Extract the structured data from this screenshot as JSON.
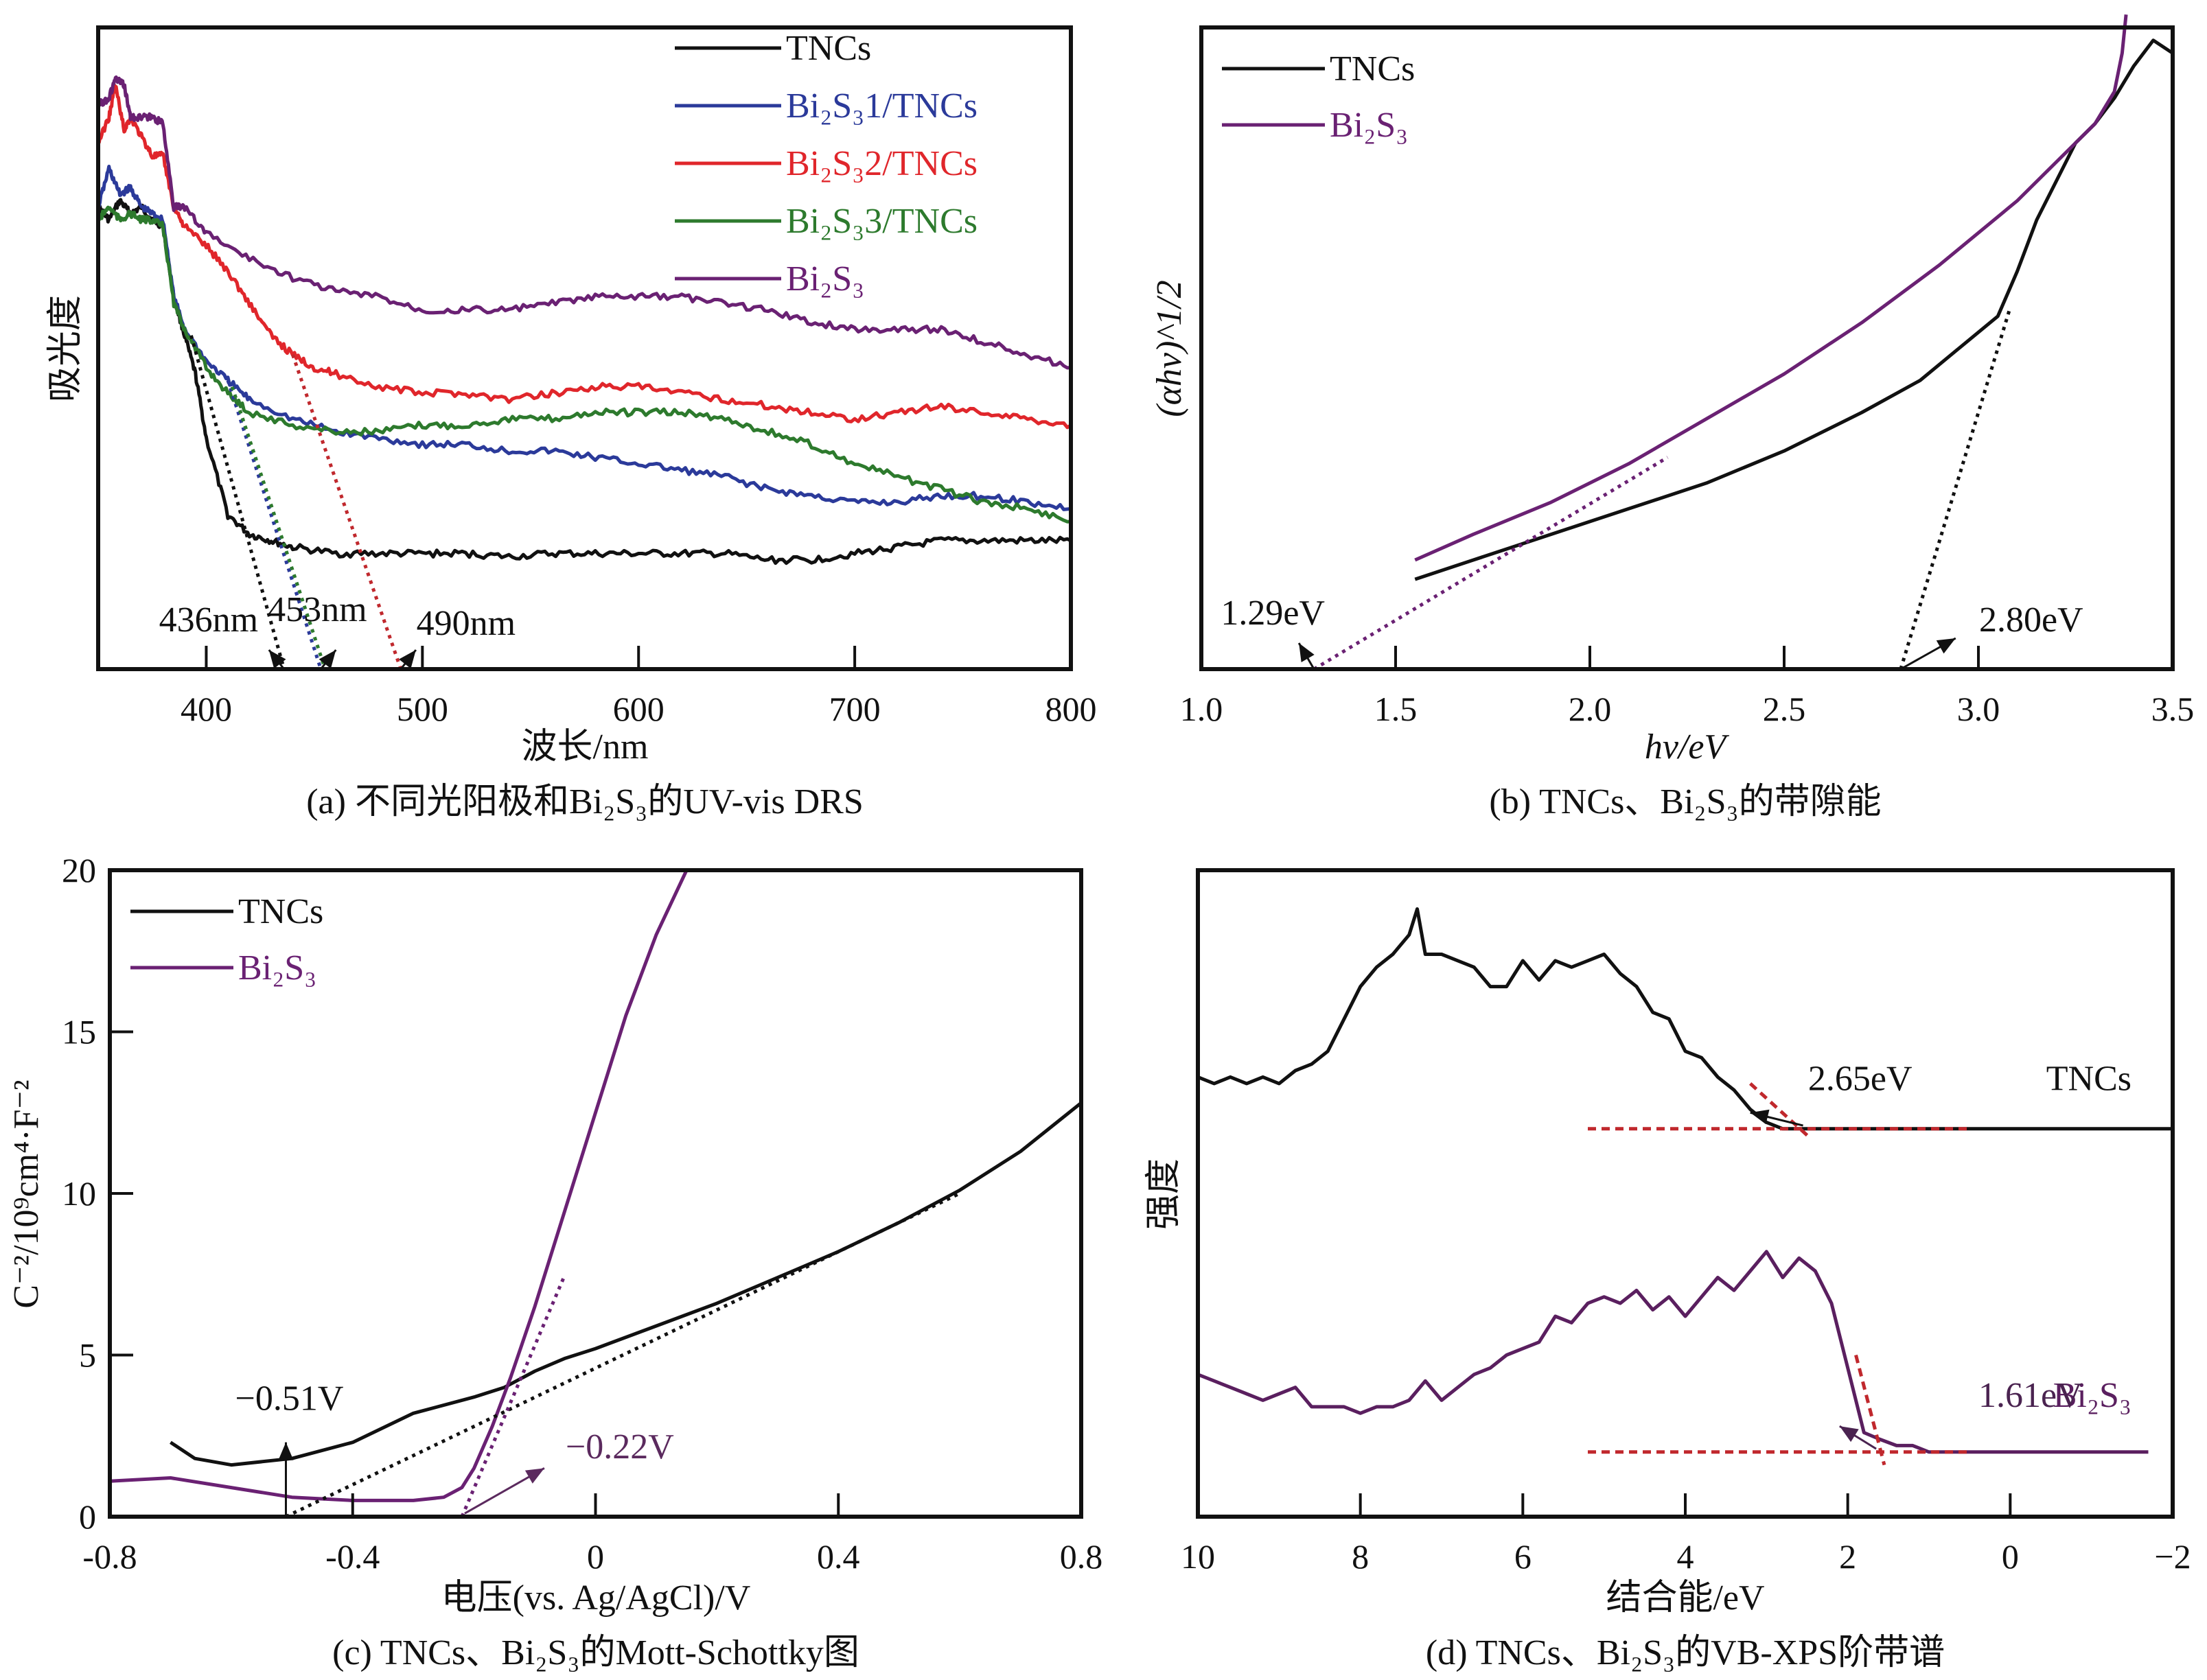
{
  "chart_data": [
    {
      "id": "a",
      "type": "line",
      "caption": "(a) 不同光阳极和Bi₂S₃的UV-vis DRS",
      "xlabel": "波长/nm",
      "ylabel": "吸光度",
      "xlim": [
        350,
        800
      ],
      "ylim": [
        0,
        1
      ],
      "xticks": [
        400,
        500,
        600,
        700,
        800
      ],
      "yticks": [],
      "grid": false,
      "legend_position": "top-right",
      "series": [
        {
          "name": "TNCs",
          "color": "#111111",
          "x": [
            350,
            355,
            360,
            365,
            370,
            375,
            380,
            385,
            390,
            395,
            400,
            410,
            420,
            430,
            440,
            460,
            480,
            500,
            520,
            540,
            560,
            580,
            600,
            620,
            640,
            660,
            680,
            700,
            720,
            740,
            760,
            780,
            800
          ],
          "y": [
            0.72,
            0.7,
            0.73,
            0.71,
            0.72,
            0.7,
            0.69,
            0.58,
            0.52,
            0.46,
            0.36,
            0.24,
            0.21,
            0.2,
            0.19,
            0.18,
            0.18,
            0.18,
            0.18,
            0.175,
            0.18,
            0.18,
            0.18,
            0.18,
            0.18,
            0.17,
            0.17,
            0.18,
            0.19,
            0.2,
            0.2,
            0.2,
            0.2
          ]
        },
        {
          "name": "Bi₂S₃1/TNCs",
          "color": "#2b3a9a",
          "x": [
            350,
            355,
            360,
            365,
            370,
            375,
            380,
            385,
            390,
            400,
            410,
            420,
            440,
            460,
            480,
            500,
            520,
            540,
            560,
            580,
            600,
            620,
            640,
            660,
            680,
            700,
            720,
            740,
            760,
            780,
            800
          ],
          "y": [
            0.72,
            0.78,
            0.74,
            0.75,
            0.72,
            0.71,
            0.7,
            0.58,
            0.53,
            0.48,
            0.45,
            0.42,
            0.39,
            0.37,
            0.36,
            0.35,
            0.35,
            0.34,
            0.34,
            0.33,
            0.32,
            0.31,
            0.3,
            0.28,
            0.27,
            0.26,
            0.26,
            0.27,
            0.27,
            0.26,
            0.25
          ]
        },
        {
          "name": "Bi₂S₃2/TNCs",
          "color": "#e0262b",
          "x": [
            350,
            355,
            358,
            362,
            365,
            370,
            375,
            380,
            385,
            390,
            400,
            410,
            420,
            430,
            440,
            450,
            460,
            480,
            500,
            520,
            540,
            560,
            580,
            600,
            620,
            640,
            660,
            680,
            700,
            720,
            740,
            760,
            780,
            800
          ],
          "y": [
            0.82,
            0.86,
            0.91,
            0.84,
            0.86,
            0.83,
            0.8,
            0.8,
            0.72,
            0.69,
            0.66,
            0.62,
            0.57,
            0.52,
            0.49,
            0.47,
            0.46,
            0.44,
            0.43,
            0.43,
            0.42,
            0.43,
            0.44,
            0.44,
            0.43,
            0.42,
            0.41,
            0.4,
            0.39,
            0.4,
            0.41,
            0.4,
            0.39,
            0.38
          ]
        },
        {
          "name": "Bi₂S₃3/TNCs",
          "color": "#2d7a2d",
          "x": [
            350,
            355,
            360,
            365,
            370,
            375,
            380,
            385,
            390,
            400,
            410,
            420,
            440,
            460,
            480,
            500,
            520,
            540,
            560,
            580,
            600,
            620,
            640,
            660,
            680,
            700,
            720,
            740,
            760,
            780,
            800
          ],
          "y": [
            0.7,
            0.72,
            0.7,
            0.71,
            0.7,
            0.7,
            0.69,
            0.57,
            0.53,
            0.47,
            0.43,
            0.4,
            0.38,
            0.37,
            0.37,
            0.38,
            0.38,
            0.39,
            0.39,
            0.4,
            0.4,
            0.4,
            0.39,
            0.37,
            0.35,
            0.32,
            0.3,
            0.28,
            0.26,
            0.25,
            0.23
          ]
        },
        {
          "name": "Bi₂S₃",
          "color": "#6a2173",
          "x": [
            350,
            355,
            358,
            362,
            365,
            370,
            375,
            380,
            385,
            390,
            400,
            420,
            440,
            460,
            480,
            500,
            520,
            540,
            560,
            580,
            600,
            620,
            640,
            660,
            680,
            700,
            720,
            740,
            760,
            780,
            800
          ],
          "y": [
            0.88,
            0.89,
            0.92,
            0.91,
            0.86,
            0.86,
            0.86,
            0.85,
            0.72,
            0.72,
            0.68,
            0.64,
            0.61,
            0.59,
            0.58,
            0.56,
            0.56,
            0.56,
            0.57,
            0.58,
            0.58,
            0.58,
            0.57,
            0.56,
            0.54,
            0.53,
            0.53,
            0.53,
            0.51,
            0.49,
            0.47
          ]
        }
      ],
      "tangents": [
        {
          "color": "#111111",
          "from": [
            393,
            0.52
          ],
          "to": [
            436,
            0.0
          ]
        },
        {
          "color": "#2b3a9a",
          "from": [
            410,
            0.45
          ],
          "to": [
            453,
            0.0
          ]
        },
        {
          "color": "#2d7a2d",
          "from": [
            412,
            0.44
          ],
          "to": [
            455,
            0.0
          ]
        },
        {
          "color": "#c0282d",
          "from": [
            440,
            0.49
          ],
          "to": [
            490,
            0.0
          ]
        }
      ],
      "annotations": [
        {
          "text": "436nm",
          "x": 436,
          "arrow_to": [
            436,
            0.0
          ]
        },
        {
          "text": "453nm",
          "x": 453,
          "arrow_to": [
            453,
            0.0
          ]
        },
        {
          "text": "490nm",
          "x": 490,
          "arrow_to": [
            490,
            0.0
          ]
        }
      ]
    },
    {
      "id": "b",
      "type": "line",
      "caption": "(b) TNCs、Bi₂S₃的带隙能",
      "xlabel": "hv/eV",
      "ylabel": "(αhv)^1/2",
      "xlim": [
        1.0,
        3.5
      ],
      "ylim": [
        0,
        1
      ],
      "xticks": [
        "1.0",
        "1.5",
        "2.0",
        "2.5",
        "3.0",
        "3.5"
      ],
      "yticks": [],
      "grid": false,
      "legend_position": "top-left",
      "series": [
        {
          "name": "TNCs",
          "color": "#111111",
          "x": [
            1.55,
            1.7,
            1.9,
            2.1,
            2.3,
            2.5,
            2.7,
            2.85,
            2.95,
            3.05,
            3.1,
            3.15,
            3.2,
            3.25,
            3.3,
            3.35,
            3.4,
            3.45,
            3.5
          ],
          "y": [
            0.14,
            0.17,
            0.21,
            0.25,
            0.29,
            0.34,
            0.4,
            0.45,
            0.5,
            0.55,
            0.62,
            0.7,
            0.76,
            0.82,
            0.85,
            0.89,
            0.94,
            0.98,
            0.96
          ]
        },
        {
          "name": "Bi₂S₃",
          "color": "#6a2173",
          "x": [
            1.55,
            1.7,
            1.9,
            2.1,
            2.3,
            2.5,
            2.7,
            2.9,
            3.1,
            3.2,
            3.3,
            3.35,
            3.37,
            3.38
          ],
          "y": [
            0.17,
            0.21,
            0.26,
            0.32,
            0.39,
            0.46,
            0.54,
            0.63,
            0.73,
            0.79,
            0.85,
            0.9,
            0.96,
            1.02
          ]
        }
      ],
      "tangents": [
        {
          "color": "#6a2173",
          "from": [
            1.29,
            0.0
          ],
          "to": [
            2.2,
            0.33
          ]
        },
        {
          "color": "#111111",
          "from": [
            2.8,
            0.0
          ],
          "to": [
            3.08,
            0.56
          ]
        }
      ],
      "annotations": [
        {
          "text": "1.29eV",
          "x": 1.29
        },
        {
          "text": "2.80eV",
          "x": 2.8
        }
      ]
    },
    {
      "id": "c",
      "type": "line",
      "caption": "(c) TNCs、Bi₂S₃的Mott-Schottky图",
      "xlabel": "电压(vs. Ag/AgCl)/V",
      "ylabel": "C⁻²/10⁹cm⁴·F⁻²",
      "xlim": [
        -0.8,
        0.8
      ],
      "ylim": [
        0,
        20
      ],
      "xticks": [
        "-0.8",
        "-0.4",
        "0",
        "0.4",
        "0.8"
      ],
      "yticks": [
        "0",
        "5",
        "10",
        "15",
        "20"
      ],
      "grid": false,
      "legend_position": "top-left",
      "series": [
        {
          "name": "TNCs",
          "color": "#111111",
          "x": [
            -0.7,
            -0.66,
            -0.6,
            -0.5,
            -0.4,
            -0.3,
            -0.2,
            -0.15,
            -0.1,
            -0.05,
            0,
            0.1,
            0.2,
            0.3,
            0.4,
            0.5,
            0.6,
            0.7,
            0.8
          ],
          "y": [
            2.3,
            1.8,
            1.6,
            1.8,
            2.3,
            3.2,
            3.7,
            4.0,
            4.5,
            4.9,
            5.2,
            5.9,
            6.6,
            7.4,
            8.2,
            9.1,
            10.1,
            11.3,
            12.8
          ]
        },
        {
          "name": "Bi₂S₃",
          "color": "#6a2173",
          "x": [
            -0.8,
            -0.7,
            -0.6,
            -0.5,
            -0.4,
            -0.3,
            -0.25,
            -0.22,
            -0.2,
            -0.17,
            -0.14,
            -0.1,
            -0.05,
            0,
            0.05,
            0.1,
            0.15
          ],
          "y": [
            1.1,
            1.2,
            0.9,
            0.6,
            0.5,
            0.5,
            0.6,
            0.9,
            1.5,
            2.8,
            4.3,
            6.5,
            9.5,
            12.5,
            15.5,
            18.0,
            20.0
          ]
        }
      ],
      "tangents": [
        {
          "color": "#111111",
          "from": [
            -0.51,
            0.0
          ],
          "to": [
            0.6,
            10.0
          ]
        },
        {
          "color": "#6a2173",
          "from": [
            -0.22,
            0.0
          ],
          "to": [
            -0.05,
            7.5
          ]
        }
      ],
      "annotations": [
        {
          "text": "−0.51V",
          "x": -0.51,
          "color": "#111111"
        },
        {
          "text": "−0.22V",
          "x": -0.22,
          "color": "#5b2a5e"
        }
      ]
    },
    {
      "id": "d",
      "type": "line",
      "caption": "(d) TNCs、Bi₂S₃的VB-XPS阶带谱",
      "xlabel": "结合能/eV",
      "ylabel": "强度",
      "xlim": [
        10,
        -2
      ],
      "ylim": [
        0,
        1
      ],
      "xticks": [
        "10",
        "8",
        "6",
        "4",
        "2",
        "0",
        "−2"
      ],
      "yticks": [],
      "grid": false,
      "series": [
        {
          "name": "TNCs",
          "color": "#111111",
          "label_position": "right-upper",
          "x": [
            10,
            9.8,
            9.6,
            9.4,
            9.2,
            9.0,
            8.8,
            8.6,
            8.4,
            8.2,
            8.0,
            7.8,
            7.6,
            7.4,
            7.3,
            7.2,
            7.0,
            6.8,
            6.6,
            6.4,
            6.2,
            6.0,
            5.8,
            5.6,
            5.4,
            5.2,
            5.0,
            4.8,
            4.6,
            4.4,
            4.2,
            4.0,
            3.8,
            3.6,
            3.4,
            3.2,
            3.0,
            2.8,
            2.65,
            2.4,
            2.2,
            2.0,
            1.5,
            1.0,
            0.5,
            0,
            -0.5,
            -1,
            -1.5,
            -2
          ],
          "y": [
            0.68,
            0.67,
            0.68,
            0.67,
            0.68,
            0.67,
            0.69,
            0.7,
            0.72,
            0.77,
            0.82,
            0.85,
            0.87,
            0.9,
            0.94,
            0.87,
            0.87,
            0.86,
            0.85,
            0.82,
            0.82,
            0.86,
            0.83,
            0.86,
            0.85,
            0.86,
            0.87,
            0.84,
            0.82,
            0.78,
            0.77,
            0.72,
            0.71,
            0.68,
            0.66,
            0.63,
            0.61,
            0.6,
            0.6,
            0.6,
            0.6,
            0.6,
            0.6,
            0.6,
            0.6,
            0.6,
            0.6,
            0.6,
            0.6,
            0.6
          ]
        },
        {
          "name": "Bi₂S₃",
          "color": "#5a1f5f",
          "label_position": "right-lower",
          "x": [
            10,
            9.8,
            9.6,
            9.4,
            9.2,
            9.0,
            8.8,
            8.6,
            8.4,
            8.2,
            8.0,
            7.8,
            7.6,
            7.4,
            7.2,
            7.0,
            6.8,
            6.6,
            6.4,
            6.2,
            6.0,
            5.8,
            5.6,
            5.4,
            5.2,
            5.0,
            4.8,
            4.6,
            4.4,
            4.2,
            4.0,
            3.8,
            3.6,
            3.4,
            3.2,
            3.0,
            2.8,
            2.6,
            2.4,
            2.2,
            2.0,
            1.8,
            1.61,
            1.4,
            1.2,
            1.0,
            0.5,
            0,
            -0.5,
            -1,
            -1.5,
            -1.7
          ],
          "y": [
            0.22,
            0.21,
            0.2,
            0.19,
            0.18,
            0.19,
            0.2,
            0.17,
            0.17,
            0.17,
            0.16,
            0.17,
            0.17,
            0.18,
            0.21,
            0.18,
            0.2,
            0.22,
            0.23,
            0.25,
            0.26,
            0.27,
            0.31,
            0.3,
            0.33,
            0.34,
            0.33,
            0.35,
            0.32,
            0.34,
            0.31,
            0.34,
            0.37,
            0.35,
            0.38,
            0.41,
            0.37,
            0.4,
            0.38,
            0.33,
            0.23,
            0.13,
            0.12,
            0.11,
            0.11,
            0.1,
            0.1,
            0.1,
            0.1,
            0.1,
            0.1,
            0.1
          ]
        }
      ],
      "tangents": [
        {
          "color": "#c0282d",
          "from": [
            5.2,
            0.6
          ],
          "to": [
            0.5,
            0.6
          ]
        },
        {
          "color": "#c0282d",
          "from": [
            3.2,
            0.67
          ],
          "to": [
            2.5,
            0.59
          ]
        },
        {
          "color": "#c0282d",
          "from": [
            5.2,
            0.1
          ],
          "to": [
            0.5,
            0.1
          ]
        },
        {
          "color": "#c0282d",
          "from": [
            1.9,
            0.25
          ],
          "to": [
            1.55,
            0.08
          ]
        }
      ],
      "annotations": [
        {
          "text": "2.65eV",
          "x": 2.65,
          "color": "#111111"
        },
        {
          "text": "1.61eV",
          "x": 1.61,
          "color": "#4a2350"
        }
      ]
    }
  ]
}
